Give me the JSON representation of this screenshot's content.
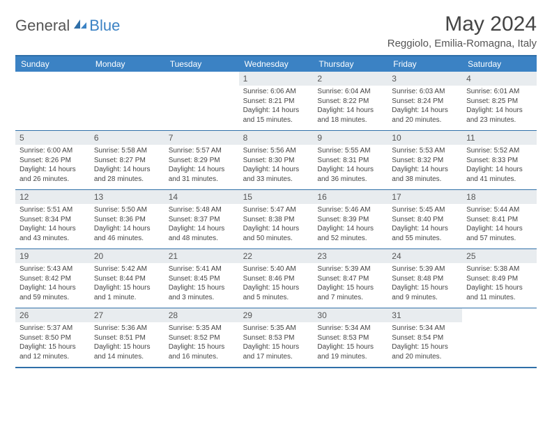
{
  "logo": {
    "general": "General",
    "blue": "Blue"
  },
  "title": "May 2024",
  "subtitle": "Reggiolo, Emilia-Romagna, Italy",
  "colors": {
    "header_bg": "#3b82c4",
    "border": "#2f6fa8",
    "daynum_bg": "#e8ecef",
    "text": "#444444"
  },
  "dayNames": [
    "Sunday",
    "Monday",
    "Tuesday",
    "Wednesday",
    "Thursday",
    "Friday",
    "Saturday"
  ],
  "weeks": [
    [
      null,
      null,
      null,
      {
        "n": "1",
        "sr": "Sunrise: 6:06 AM",
        "ss": "Sunset: 8:21 PM",
        "dl": "Daylight: 14 hours and 15 minutes."
      },
      {
        "n": "2",
        "sr": "Sunrise: 6:04 AM",
        "ss": "Sunset: 8:22 PM",
        "dl": "Daylight: 14 hours and 18 minutes."
      },
      {
        "n": "3",
        "sr": "Sunrise: 6:03 AM",
        "ss": "Sunset: 8:24 PM",
        "dl": "Daylight: 14 hours and 20 minutes."
      },
      {
        "n": "4",
        "sr": "Sunrise: 6:01 AM",
        "ss": "Sunset: 8:25 PM",
        "dl": "Daylight: 14 hours and 23 minutes."
      }
    ],
    [
      {
        "n": "5",
        "sr": "Sunrise: 6:00 AM",
        "ss": "Sunset: 8:26 PM",
        "dl": "Daylight: 14 hours and 26 minutes."
      },
      {
        "n": "6",
        "sr": "Sunrise: 5:58 AM",
        "ss": "Sunset: 8:27 PM",
        "dl": "Daylight: 14 hours and 28 minutes."
      },
      {
        "n": "7",
        "sr": "Sunrise: 5:57 AM",
        "ss": "Sunset: 8:29 PM",
        "dl": "Daylight: 14 hours and 31 minutes."
      },
      {
        "n": "8",
        "sr": "Sunrise: 5:56 AM",
        "ss": "Sunset: 8:30 PM",
        "dl": "Daylight: 14 hours and 33 minutes."
      },
      {
        "n": "9",
        "sr": "Sunrise: 5:55 AM",
        "ss": "Sunset: 8:31 PM",
        "dl": "Daylight: 14 hours and 36 minutes."
      },
      {
        "n": "10",
        "sr": "Sunrise: 5:53 AM",
        "ss": "Sunset: 8:32 PM",
        "dl": "Daylight: 14 hours and 38 minutes."
      },
      {
        "n": "11",
        "sr": "Sunrise: 5:52 AM",
        "ss": "Sunset: 8:33 PM",
        "dl": "Daylight: 14 hours and 41 minutes."
      }
    ],
    [
      {
        "n": "12",
        "sr": "Sunrise: 5:51 AM",
        "ss": "Sunset: 8:34 PM",
        "dl": "Daylight: 14 hours and 43 minutes."
      },
      {
        "n": "13",
        "sr": "Sunrise: 5:50 AM",
        "ss": "Sunset: 8:36 PM",
        "dl": "Daylight: 14 hours and 46 minutes."
      },
      {
        "n": "14",
        "sr": "Sunrise: 5:48 AM",
        "ss": "Sunset: 8:37 PM",
        "dl": "Daylight: 14 hours and 48 minutes."
      },
      {
        "n": "15",
        "sr": "Sunrise: 5:47 AM",
        "ss": "Sunset: 8:38 PM",
        "dl": "Daylight: 14 hours and 50 minutes."
      },
      {
        "n": "16",
        "sr": "Sunrise: 5:46 AM",
        "ss": "Sunset: 8:39 PM",
        "dl": "Daylight: 14 hours and 52 minutes."
      },
      {
        "n": "17",
        "sr": "Sunrise: 5:45 AM",
        "ss": "Sunset: 8:40 PM",
        "dl": "Daylight: 14 hours and 55 minutes."
      },
      {
        "n": "18",
        "sr": "Sunrise: 5:44 AM",
        "ss": "Sunset: 8:41 PM",
        "dl": "Daylight: 14 hours and 57 minutes."
      }
    ],
    [
      {
        "n": "19",
        "sr": "Sunrise: 5:43 AM",
        "ss": "Sunset: 8:42 PM",
        "dl": "Daylight: 14 hours and 59 minutes."
      },
      {
        "n": "20",
        "sr": "Sunrise: 5:42 AM",
        "ss": "Sunset: 8:44 PM",
        "dl": "Daylight: 15 hours and 1 minute."
      },
      {
        "n": "21",
        "sr": "Sunrise: 5:41 AM",
        "ss": "Sunset: 8:45 PM",
        "dl": "Daylight: 15 hours and 3 minutes."
      },
      {
        "n": "22",
        "sr": "Sunrise: 5:40 AM",
        "ss": "Sunset: 8:46 PM",
        "dl": "Daylight: 15 hours and 5 minutes."
      },
      {
        "n": "23",
        "sr": "Sunrise: 5:39 AM",
        "ss": "Sunset: 8:47 PM",
        "dl": "Daylight: 15 hours and 7 minutes."
      },
      {
        "n": "24",
        "sr": "Sunrise: 5:39 AM",
        "ss": "Sunset: 8:48 PM",
        "dl": "Daylight: 15 hours and 9 minutes."
      },
      {
        "n": "25",
        "sr": "Sunrise: 5:38 AM",
        "ss": "Sunset: 8:49 PM",
        "dl": "Daylight: 15 hours and 11 minutes."
      }
    ],
    [
      {
        "n": "26",
        "sr": "Sunrise: 5:37 AM",
        "ss": "Sunset: 8:50 PM",
        "dl": "Daylight: 15 hours and 12 minutes."
      },
      {
        "n": "27",
        "sr": "Sunrise: 5:36 AM",
        "ss": "Sunset: 8:51 PM",
        "dl": "Daylight: 15 hours and 14 minutes."
      },
      {
        "n": "28",
        "sr": "Sunrise: 5:35 AM",
        "ss": "Sunset: 8:52 PM",
        "dl": "Daylight: 15 hours and 16 minutes."
      },
      {
        "n": "29",
        "sr": "Sunrise: 5:35 AM",
        "ss": "Sunset: 8:53 PM",
        "dl": "Daylight: 15 hours and 17 minutes."
      },
      {
        "n": "30",
        "sr": "Sunrise: 5:34 AM",
        "ss": "Sunset: 8:53 PM",
        "dl": "Daylight: 15 hours and 19 minutes."
      },
      {
        "n": "31",
        "sr": "Sunrise: 5:34 AM",
        "ss": "Sunset: 8:54 PM",
        "dl": "Daylight: 15 hours and 20 minutes."
      },
      null
    ]
  ]
}
